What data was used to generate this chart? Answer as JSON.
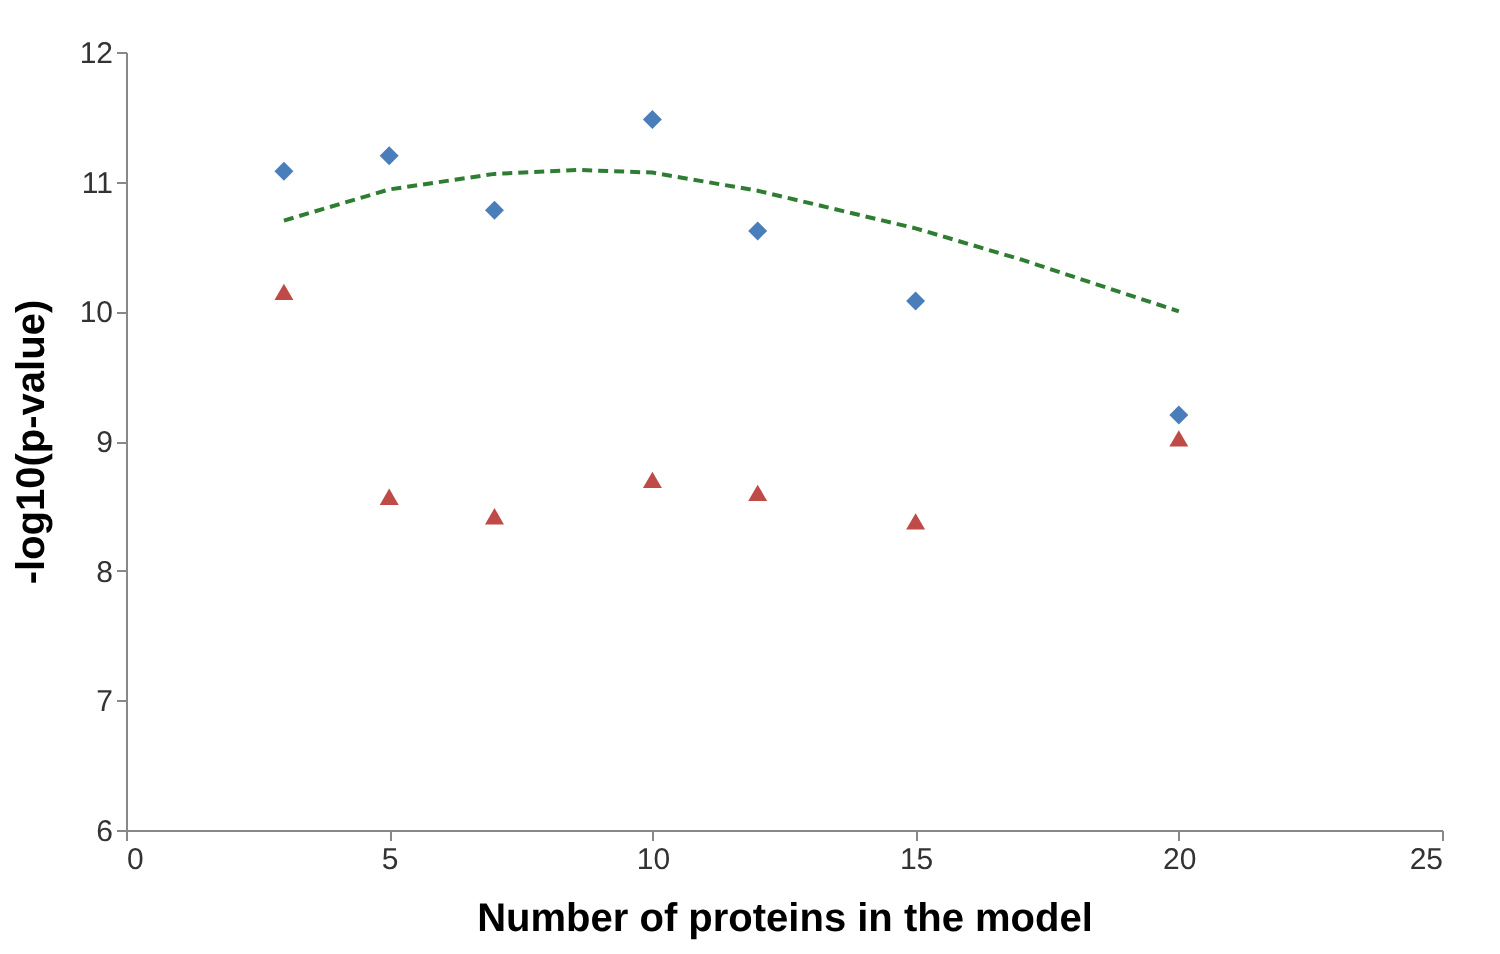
{
  "chart_data": {
    "type": "scatter",
    "xlabel": "Number of proteins in the model",
    "ylabel": "-log10(p-value)",
    "xlim": [
      0,
      25
    ],
    "xticks": [
      0,
      5,
      10,
      15,
      20,
      25
    ],
    "ylim": [
      6,
      12
    ],
    "yticks": [
      6,
      7,
      8,
      9,
      10,
      11,
      12
    ],
    "grid": false,
    "series": [
      {
        "color": "#4a7ebb",
        "marker": "diamond",
        "x": [
          3,
          5,
          7,
          10,
          12,
          15,
          20
        ],
        "values": [
          11.08,
          11.2,
          10.78,
          11.48,
          10.62,
          10.08,
          9.2
        ]
      },
      {
        "color": "#be4b48",
        "marker": "triangle",
        "x": [
          3,
          5,
          7,
          10,
          12,
          15,
          20
        ],
        "values": [
          10.15,
          8.57,
          8.42,
          8.7,
          8.6,
          8.38,
          9.02
        ]
      },
      {
        "type": "line",
        "color": "#2e7d32",
        "line_style": "dashed",
        "marker": "none",
        "x": [
          3,
          5,
          7,
          8.6,
          10,
          12,
          15,
          17,
          20
        ],
        "values": [
          10.7,
          10.94,
          11.06,
          11.09,
          11.07,
          10.93,
          10.64,
          10.4,
          10.0
        ]
      }
    ]
  }
}
